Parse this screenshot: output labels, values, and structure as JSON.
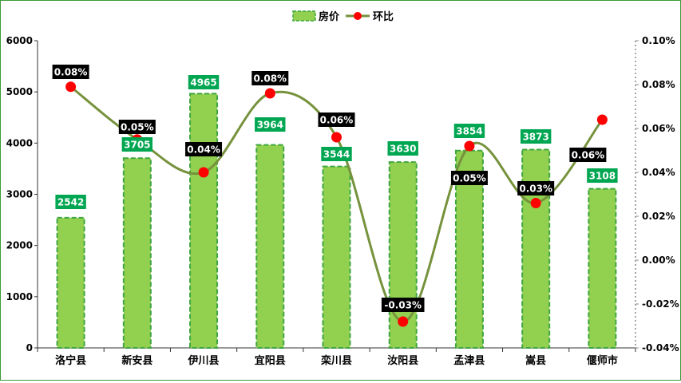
{
  "chart_data": {
    "type": "bar+line",
    "categories": [
      "洛宁县",
      "新安县",
      "伊川县",
      "宜阳县",
      "栾川县",
      "汝阳县",
      "孟津县",
      "嵩县",
      "偃师市"
    ],
    "series": [
      {
        "name": "房价",
        "type": "bar",
        "axis": "left",
        "values": [
          2542,
          3705,
          4965,
          3964,
          3544,
          3630,
          3854,
          3873,
          3108
        ],
        "labels": [
          "2542",
          "3705",
          "4965",
          "3964",
          "3544",
          "3630",
          "3854",
          "3873",
          "3108"
        ],
        "color": "#92d050",
        "border": "#3fa63f"
      },
      {
        "name": "环比",
        "type": "line",
        "axis": "right",
        "values": [
          0.08,
          0.05,
          0.04,
          0.08,
          0.06,
          -0.03,
          0.05,
          0.03,
          0.06
        ],
        "plotted": [
          0.079,
          0.055,
          0.04,
          0.076,
          0.056,
          -0.028,
          0.052,
          0.026,
          0.064
        ],
        "labels": [
          "0.08%",
          "0.05%",
          "0.04%",
          "0.08%",
          "0.06%",
          "-0.03%",
          "0.05%",
          "0.03%",
          "0.06%"
        ],
        "color": "#76923c",
        "marker_color": "#ff0000"
      }
    ],
    "y_left": {
      "lim": [
        0,
        6000
      ],
      "ticks": [
        "0",
        "1000",
        "2000",
        "3000",
        "4000",
        "5000",
        "6000"
      ]
    },
    "y_right": {
      "lim": [
        -0.04,
        0.1
      ],
      "ticks": [
        "-0.04%",
        "-0.02%",
        "0.00%",
        "0.02%",
        "0.04%",
        "0.06%",
        "0.08%",
        "0.10%"
      ]
    },
    "legend": {
      "position": "top-center"
    },
    "grid": false
  }
}
